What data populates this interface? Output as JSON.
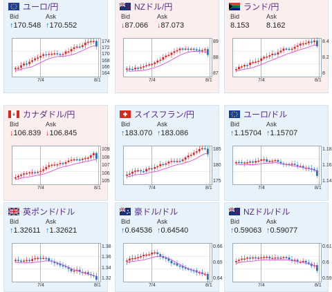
{
  "cards": [
    {
      "name": "eur-jpy",
      "pair": "ユーロ/円",
      "flag": "eu",
      "trend": "up",
      "bid_label": "Bid",
      "ask_label": "Ask",
      "bid": "170.548",
      "ask": "170.552",
      "bid_dir": "up",
      "ask_dir": "up",
      "yticks": [
        "174",
        "172",
        "170",
        "168",
        "166",
        "164"
      ],
      "xticks": [
        "7/4",
        "8/1"
      ],
      "seed": 1,
      "shape": "rise"
    },
    {
      "name": "nzd-jpy",
      "pair": "NZドル/円",
      "flag": "nz",
      "trend": "down",
      "bid_label": "Bid",
      "ask_label": "Ask",
      "bid": "87.066",
      "ask": "87.073",
      "bid_dir": "down",
      "ask_dir": "down",
      "yticks": [
        "89",
        "88",
        "87"
      ],
      "xticks": [
        "7/4",
        "8/1"
      ],
      "seed": 2,
      "shape": "rise"
    },
    {
      "name": "zar-jpy",
      "pair": "ランド/円",
      "flag": "za",
      "trend": "down",
      "bid_label": "Bid",
      "ask_label": "Ask",
      "bid": "8.153",
      "ask": "8.162",
      "bid_dir": "none",
      "ask_dir": "none",
      "yticks": [
        "8.4",
        "8.2",
        "8"
      ],
      "xticks": [
        "7/4",
        "8/1"
      ],
      "seed": 3,
      "shape": "rise"
    },
    {
      "name": "cad-jpy",
      "pair": "カナダドル/円",
      "flag": "ca",
      "trend": "down",
      "bid_label": "Bid",
      "ask_label": "Ask",
      "bid": "106.839",
      "ask": "106.845",
      "bid_dir": "down",
      "ask_dir": "down",
      "yticks": [
        "109",
        "108",
        "107",
        "106",
        "105"
      ],
      "xticks": [
        "7/4",
        "8/1"
      ],
      "seed": 4,
      "shape": "rise"
    },
    {
      "name": "chf-jpy",
      "pair": "スイスフラン/円",
      "flag": "ch",
      "trend": "up",
      "bid_label": "Bid",
      "ask_label": "Ask",
      "bid": "183.070",
      "ask": "183.086",
      "bid_dir": "up",
      "ask_dir": "up",
      "yticks": [
        "185",
        "180",
        "175"
      ],
      "xticks": [
        "7/4",
        "8/1"
      ],
      "seed": 5,
      "shape": "rise"
    },
    {
      "name": "eur-usd",
      "pair": "ユーロ/ドル",
      "flag": "eu",
      "trend": "up",
      "bid_label": "Bid",
      "ask_label": "Ask",
      "bid": "1.15704",
      "ask": "1.15707",
      "bid_dir": "up",
      "ask_dir": "up",
      "yticks": [
        "1.18",
        "1.16",
        "1.14"
      ],
      "xticks": [
        "7/4",
        "8/1"
      ],
      "seed": 6,
      "shape": "fall"
    },
    {
      "name": "gbp-usd",
      "pair": "英ポンド/ドル",
      "flag": "gb",
      "trend": "up",
      "bid_label": "Bid",
      "ask_label": "Ask",
      "bid": "1.32611",
      "ask": "1.32621",
      "bid_dir": "up",
      "ask_dir": "up",
      "yticks": [
        "1.38",
        "1.36",
        "1.34",
        "1.32"
      ],
      "xticks": [
        "7/4",
        "8/1"
      ],
      "seed": 7,
      "shape": "fall"
    },
    {
      "name": "aud-usd",
      "pair": "豪ドル/ドル",
      "flag": "au",
      "trend": "up",
      "bid_label": "Bid",
      "ask_label": "Ask",
      "bid": "0.64536",
      "ask": "0.64540",
      "bid_dir": "up",
      "ask_dir": "up",
      "yticks": [
        "0.66",
        "0.65",
        "0.64"
      ],
      "xticks": [
        "7/4",
        "8/1"
      ],
      "seed": 8,
      "shape": "fall"
    },
    {
      "name": "nzd-usd",
      "pair": "NZドル/ドル",
      "flag": "nz",
      "trend": "up",
      "bid_label": "Bid",
      "ask_label": "Ask",
      "bid": "0.59063",
      "ask": "0.59077",
      "bid_dir": "up",
      "ask_dir": "up",
      "yticks": [
        "0.61",
        "0.6",
        "0.59"
      ],
      "xticks": [
        "7/4",
        "8/1"
      ],
      "seed": 9,
      "shape": "fall"
    }
  ],
  "colors": {
    "up": "#1e73be",
    "down": "#d9252b",
    "ma": "#d94fd9",
    "card_up_bg": "#e7f2fb",
    "card_down_bg": "#fdeeee",
    "title": "#5a2a8c"
  }
}
